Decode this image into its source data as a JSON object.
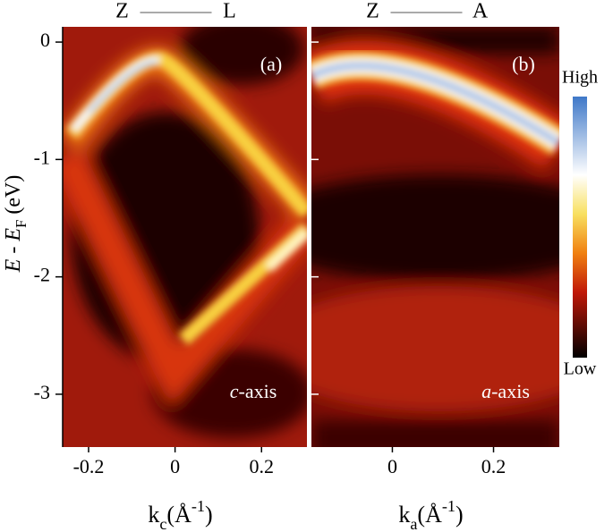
{
  "chart_data": [
    {
      "type": "heatmap",
      "panel_label": "(a)",
      "top_labels": [
        "Z",
        "L"
      ],
      "annotation": {
        "italic": "c",
        "rest": "-axis"
      },
      "xlabel": {
        "text": "k",
        "sub": "c",
        "open": "(Å",
        "sup": "-1",
        "close": ")"
      },
      "ylabel": {
        "text": "E - E",
        "sub": "F",
        "unit": " (eV)"
      },
      "xlim": [
        -0.26,
        0.305
      ],
      "xticks": [
        -0.2,
        0,
        0.2
      ],
      "ylim": [
        -3.45,
        0.13
      ],
      "yticks": [
        0,
        -1,
        -2,
        -3
      ]
    },
    {
      "type": "heatmap",
      "panel_label": "(b)",
      "top_labels": [
        "Z",
        "A"
      ],
      "annotation": {
        "italic": "a",
        "rest": "-axis"
      },
      "xlabel": {
        "text": "k",
        "sub": "a",
        "open": "(Å",
        "sup": "-1",
        "close": ")"
      },
      "xlim": [
        -0.16,
        0.33
      ],
      "xticks": [
        0,
        0.2
      ],
      "ylim": [
        -3.45,
        0.13
      ],
      "yticks": [
        0,
        -1,
        -2,
        -3
      ]
    }
  ],
  "colorbar": {
    "high": "High",
    "low": "Low"
  }
}
